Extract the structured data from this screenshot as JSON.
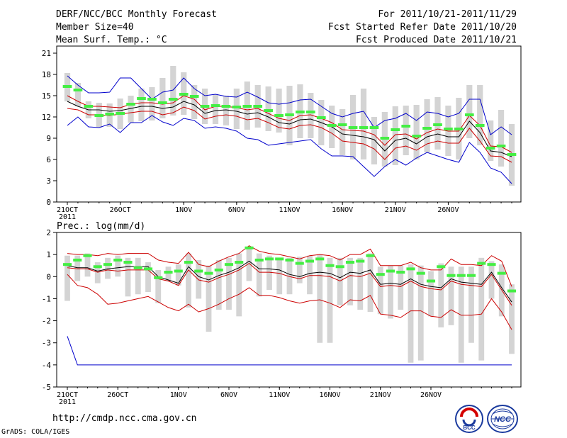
{
  "header": {
    "title": "DERF/NCC/BCC Monthly Forecast",
    "member_size": "Member Size=40",
    "variable": "Mean Surf. Temp.: °C",
    "period": "For 2011/10/21-2011/11/29",
    "started": "Fcst Started Refer Date 2011/10/20",
    "produced": "Fcst Produced Date 2011/10/21"
  },
  "footer": {
    "url": "http://cmdp.ncc.cma.gov.cn",
    "software": "GrADS: COLA/IGES",
    "logo1_text": "BCC",
    "logo2_text": "NCC"
  },
  "colors": {
    "box": "#d4d4d4",
    "median": "#44ee44",
    "mean": "#000000",
    "sd": "#cc0000",
    "range": "#0000cc"
  },
  "chart_data": [
    {
      "type": "box",
      "title": "Mean Surf. Temp.: °C",
      "xtick_labels": [
        "21OCT\n2011",
        "26OCT",
        "1NOV",
        "6NOV",
        "11NOV",
        "16NOV",
        "21NOV",
        "26NOV"
      ],
      "xtick_index": [
        0,
        5,
        11,
        16,
        21,
        26,
        31,
        36
      ],
      "yticks": [
        0,
        3,
        6,
        9,
        12,
        15,
        18,
        21
      ],
      "ylim": [
        0,
        22
      ],
      "series": [
        {
          "name": "mean",
          "values": [
            14.2,
            13.5,
            13.0,
            13.0,
            12.8,
            12.9,
            13.2,
            13.5,
            13.5,
            13.2,
            13.4,
            14.2,
            13.7,
            12.5,
            12.9,
            13.0,
            12.8,
            12.4,
            12.6,
            12.0,
            11.2,
            11.0,
            11.6,
            11.7,
            11.2,
            10.6,
            9.6,
            9.4,
            9.2,
            8.8,
            7.2,
            8.7,
            9.0,
            8.2,
            9.2,
            9.6,
            9.2,
            9.2,
            11.4,
            9.8,
            7.2,
            7.0,
            6.4
          ]
        },
        {
          "name": "mean+sd",
          "values": [
            15.0,
            14.2,
            13.5,
            13.5,
            13.4,
            13.3,
            13.8,
            14.0,
            14.0,
            13.8,
            14.0,
            15.0,
            14.5,
            13.0,
            13.5,
            13.5,
            13.3,
            13.0,
            13.2,
            12.5,
            11.8,
            11.5,
            12.2,
            12.3,
            11.8,
            11.2,
            10.2,
            10.1,
            10.0,
            9.5,
            8.0,
            9.5,
            9.6,
            8.9,
            9.8,
            10.3,
            10.0,
            10.0,
            12.2,
            10.8,
            7.9,
            7.8,
            7.0
          ]
        },
        {
          "name": "mean-sd",
          "values": [
            13.2,
            13.0,
            12.3,
            12.3,
            12.2,
            12.4,
            12.6,
            12.8,
            12.8,
            12.3,
            12.6,
            13.4,
            12.9,
            11.7,
            12.1,
            12.3,
            12.1,
            11.6,
            11.8,
            11.2,
            10.5,
            10.3,
            10.8,
            10.9,
            10.5,
            9.7,
            8.6,
            8.4,
            8.2,
            7.5,
            6.0,
            7.6,
            7.9,
            7.3,
            8.2,
            8.6,
            8.3,
            8.3,
            10.4,
            8.6,
            6.5,
            6.4,
            5.6
          ]
        },
        {
          "name": "max",
          "values": [
            17.8,
            16.5,
            15.4,
            15.4,
            15.5,
            17.5,
            17.5,
            16.0,
            14.5,
            15.5,
            15.8,
            17.5,
            16.0,
            15.0,
            15.2,
            14.9,
            14.8,
            15.5,
            14.8,
            14.0,
            13.8,
            14.0,
            14.4,
            14.5,
            13.5,
            12.5,
            12.0,
            12.5,
            12.8,
            10.5,
            11.5,
            11.8,
            12.5,
            11.5,
            12.7,
            12.5,
            12.0,
            12.5,
            14.5,
            14.5,
            9.5,
            10.6,
            9.5
          ]
        },
        {
          "name": "min",
          "values": [
            10.8,
            12.0,
            10.6,
            10.5,
            11.0,
            9.8,
            11.2,
            11.2,
            12.2,
            11.3,
            10.8,
            11.8,
            11.5,
            10.4,
            10.6,
            10.4,
            10.0,
            9.0,
            8.8,
            8.0,
            8.2,
            8.4,
            8.6,
            8.8,
            7.5,
            6.5,
            6.5,
            6.4,
            5.0,
            3.6,
            5.0,
            6.0,
            5.2,
            6.2,
            7.0,
            6.5,
            6.0,
            5.6,
            8.4,
            7.0,
            4.8,
            4.2,
            2.6
          ]
        },
        {
          "name": "median",
          "values": [
            16.3,
            15.8,
            13.5,
            12.2,
            12.4,
            12.5,
            13.8,
            14.6,
            14.5,
            14.0,
            14.5,
            15.2,
            14.9,
            13.5,
            13.6,
            13.5,
            13.4,
            13.5,
            13.5,
            12.9,
            12.2,
            12.3,
            12.7,
            12.7,
            11.9,
            10.8,
            10.9,
            10.5,
            10.5,
            10.5,
            9.0,
            10.2,
            10.7,
            9.3,
            10.4,
            10.9,
            10.3,
            10.3,
            12.3,
            10.8,
            7.6,
            7.9,
            6.7
          ]
        },
        {
          "name": "box_high",
          "values": [
            18.2,
            16.8,
            14.2,
            14.0,
            13.9,
            14.6,
            15.0,
            16.0,
            16.2,
            17.5,
            19.2,
            18.3,
            16.5,
            16.0,
            15.2,
            15.0,
            16.0,
            17.0,
            16.5,
            16.3,
            16.0,
            16.4,
            16.6,
            15.4,
            14.4,
            13.6,
            13.1,
            15.1,
            16.0,
            12.0,
            12.7,
            13.5,
            13.6,
            13.7,
            14.5,
            14.8,
            13.6,
            14.7,
            16.5,
            16.5,
            11.5,
            13.0,
            11.0
          ]
        },
        {
          "name": "box_low",
          "values": [
            14.2,
            13.5,
            11.8,
            10.5,
            10.6,
            10.3,
            11.2,
            11.4,
            11.5,
            11.8,
            12.2,
            12.3,
            11.7,
            11.0,
            11.0,
            10.8,
            10.3,
            10.2,
            10.5,
            10.0,
            9.8,
            8.0,
            9.0,
            9.0,
            8.0,
            7.6,
            6.6,
            6.0,
            6.0,
            5.3,
            5.0,
            5.2,
            6.6,
            6.0,
            7.0,
            7.4,
            6.5,
            6.0,
            9.0,
            8.0,
            5.8,
            5.0,
            2.3
          ]
        }
      ]
    },
    {
      "type": "box",
      "title": "Prec.: log(mm/d)",
      "xtick_labels": [
        "21OCT\n2011",
        "26OCT",
        "1NOV",
        "6NOV",
        "11NOV",
        "16NOV",
        "21NOV",
        "26NOV"
      ],
      "xtick_index": [
        0,
        5,
        11,
        16,
        21,
        26,
        31,
        36
      ],
      "yticks": [
        -5,
        -4,
        -3,
        -2,
        -1,
        0,
        1,
        2
      ],
      "ylim": [
        -5,
        2
      ],
      "series": [
        {
          "name": "mean",
          "values": [
            0.5,
            0.4,
            0.4,
            0.25,
            0.35,
            0.4,
            0.45,
            0.45,
            0.45,
            0.0,
            -0.15,
            -0.3,
            0.45,
            0.0,
            -0.15,
            0.05,
            0.2,
            0.4,
            0.7,
            0.35,
            0.35,
            0.3,
            0.1,
            0.0,
            0.15,
            0.2,
            0.15,
            -0.05,
            0.2,
            0.15,
            0.3,
            -0.35,
            -0.3,
            -0.35,
            -0.1,
            -0.35,
            -0.45,
            -0.5,
            -0.1,
            -0.25,
            -0.3,
            -0.35,
            0.2,
            -0.5,
            -1.15
          ]
        },
        {
          "name": "mean+sd",
          "values": [
            1.05,
            1.0,
            1.0,
            0.95,
            1.05,
            1.0,
            1.05,
            1.05,
            1.05,
            0.75,
            0.65,
            0.6,
            1.1,
            0.55,
            0.45,
            0.7,
            0.9,
            1.05,
            1.4,
            1.15,
            1.05,
            1.0,
            0.9,
            0.8,
            0.95,
            1.0,
            0.95,
            0.75,
            1.0,
            1.0,
            1.25,
            0.5,
            0.5,
            0.5,
            0.65,
            0.4,
            0.3,
            0.3,
            0.8,
            0.55,
            0.55,
            0.5,
            0.95,
            0.7,
            -0.45
          ]
        },
        {
          "name": "mean-sd",
          "values": [
            0.4,
            0.35,
            0.35,
            0.2,
            0.3,
            0.25,
            0.3,
            0.3,
            0.3,
            -0.1,
            -0.2,
            -0.4,
            0.3,
            -0.15,
            -0.25,
            -0.05,
            0.1,
            0.3,
            0.6,
            0.2,
            0.2,
            0.15,
            0.0,
            -0.1,
            0.05,
            0.05,
            0.0,
            -0.2,
            0.05,
            0.0,
            0.15,
            -0.45,
            -0.4,
            -0.45,
            -0.2,
            -0.45,
            -0.55,
            -0.6,
            -0.2,
            -0.35,
            -0.4,
            -0.45,
            0.1,
            -0.6,
            -1.3
          ]
        },
        {
          "name": "min_line",
          "values": [
            0.1,
            -0.4,
            -0.5,
            -0.8,
            -1.25,
            -1.2,
            -1.1,
            -1.0,
            -0.9,
            -1.15,
            -1.4,
            -1.55,
            -1.25,
            -1.6,
            -1.45,
            -1.25,
            -1.0,
            -0.8,
            -0.5,
            -0.85,
            -0.85,
            -0.95,
            -1.1,
            -1.2,
            -1.1,
            -1.05,
            -1.2,
            -1.4,
            -1.05,
            -1.1,
            -0.85,
            -1.7,
            -1.75,
            -1.85,
            -1.55,
            -1.55,
            -1.8,
            -1.85,
            -1.5,
            -1.75,
            -1.75,
            -1.7,
            -1.0,
            -1.6,
            -2.4
          ]
        },
        {
          "name": "abs_min",
          "values": [
            -2.7,
            -4.0,
            -4.0,
            -4.0,
            -4.0,
            -4.0,
            -4.0,
            -4.0,
            -4.0,
            -4.0,
            -4.0,
            -4.0,
            -4.0,
            -4.0,
            -4.0,
            -4.0,
            -4.0,
            -4.0,
            -4.0,
            -4.0,
            -4.0,
            -4.0,
            -4.0,
            -4.0,
            -4.0,
            -4.0,
            -4.0,
            -4.0,
            -4.0,
            -4.0,
            -4.0,
            -4.0,
            -4.0,
            -4.0,
            -4.0,
            -4.0,
            -4.0,
            -4.0,
            -4.0,
            -4.0,
            -4.0,
            -4.0,
            -4.0,
            -4.0,
            -4.0
          ]
        },
        {
          "name": "median",
          "values": [
            0.55,
            0.75,
            0.95,
            0.45,
            0.55,
            0.75,
            0.65,
            0.4,
            0.35,
            -0.05,
            0.2,
            0.25,
            0.65,
            0.25,
            0.15,
            0.3,
            0.55,
            0.65,
            1.3,
            0.75,
            0.8,
            0.8,
            0.75,
            0.6,
            0.7,
            0.8,
            0.5,
            0.45,
            0.65,
            0.7,
            0.95,
            0.1,
            0.25,
            0.2,
            0.35,
            0.15,
            -0.2,
            0.45,
            0.05,
            0.05,
            0.05,
            0.6,
            0.55,
            0.15,
            -0.65
          ]
        },
        {
          "name": "box_high",
          "values": [
            0.95,
            0.95,
            1.05,
            0.65,
            0.85,
            0.95,
            0.85,
            0.85,
            0.65,
            0.3,
            0.45,
            0.55,
            1.05,
            0.75,
            0.5,
            0.75,
            0.85,
            1.05,
            1.35,
            1.05,
            0.95,
            0.85,
            0.85,
            0.9,
            0.95,
            1.0,
            0.85,
            0.85,
            0.85,
            0.85,
            1.05,
            0.45,
            0.5,
            0.5,
            0.55,
            0.5,
            0.25,
            0.6,
            0.45,
            0.45,
            0.45,
            0.85,
            0.7,
            0.55,
            -0.35
          ]
        },
        {
          "name": "box_low",
          "values": [
            -1.1,
            -0.2,
            0.0,
            -0.3,
            -0.1,
            0.0,
            -0.9,
            -0.8,
            -0.7,
            -1.2,
            -0.2,
            -0.4,
            -1.4,
            -1.0,
            -2.5,
            -1.5,
            -1.5,
            -1.8,
            -0.2,
            -0.9,
            -0.6,
            -0.8,
            -0.8,
            -0.3,
            -0.8,
            -3.0,
            -3.0,
            -1.3,
            -1.3,
            -1.5,
            -1.6,
            -1.7,
            -1.9,
            -1.5,
            -3.9,
            -3.8,
            -1.8,
            -2.3,
            -2.2,
            -3.9,
            -3.0,
            -3.8,
            -1.0,
            -1.8,
            -3.5
          ]
        }
      ]
    }
  ]
}
